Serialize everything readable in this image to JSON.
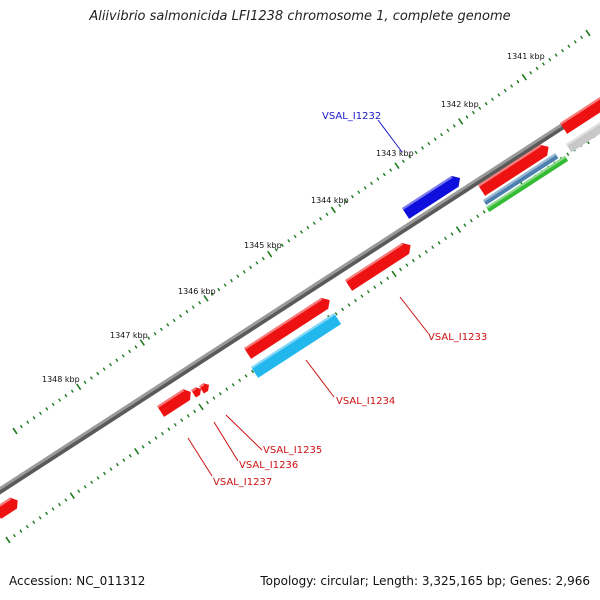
{
  "header": {
    "title": "Aliivibrio salmonicida LFI1238 chromosome 1, complete genome"
  },
  "footer": {
    "accession": "Accession: NC_011312",
    "summary": "Topology: circular; Length: 3,325,165 bp; Genes: 2,966"
  },
  "ticks": [
    "1341 kbp",
    "1342 kbp",
    "1343 kbp",
    "1344 kbp",
    "1345 kbp",
    "1346 kbp",
    "1347 kbp",
    "1348 kbp"
  ],
  "genes": [
    {
      "name": "VSAL_I1232",
      "color": "#1a1acc"
    },
    {
      "name": "VSAL_I1233",
      "color": "#cc1111"
    },
    {
      "name": "VSAL_I1234",
      "color": "#cc1111"
    },
    {
      "name": "VSAL_I1235",
      "color": "#cc1111"
    },
    {
      "name": "VSAL_I1236",
      "color": "#cc1111"
    },
    {
      "name": "VSAL_I1237",
      "color": "#cc1111"
    }
  ],
  "colors": {
    "backbone": "#8a8a8a",
    "ticks": "#1f7a1f",
    "gene_forward": "#ee1111",
    "gene_reverse": "#0f0fdd",
    "cds_cyan": "#22b8ee",
    "cds_steel": "#4a7fb0",
    "cds_green": "#33bb33",
    "cds_grey": "#c8c8c8"
  }
}
